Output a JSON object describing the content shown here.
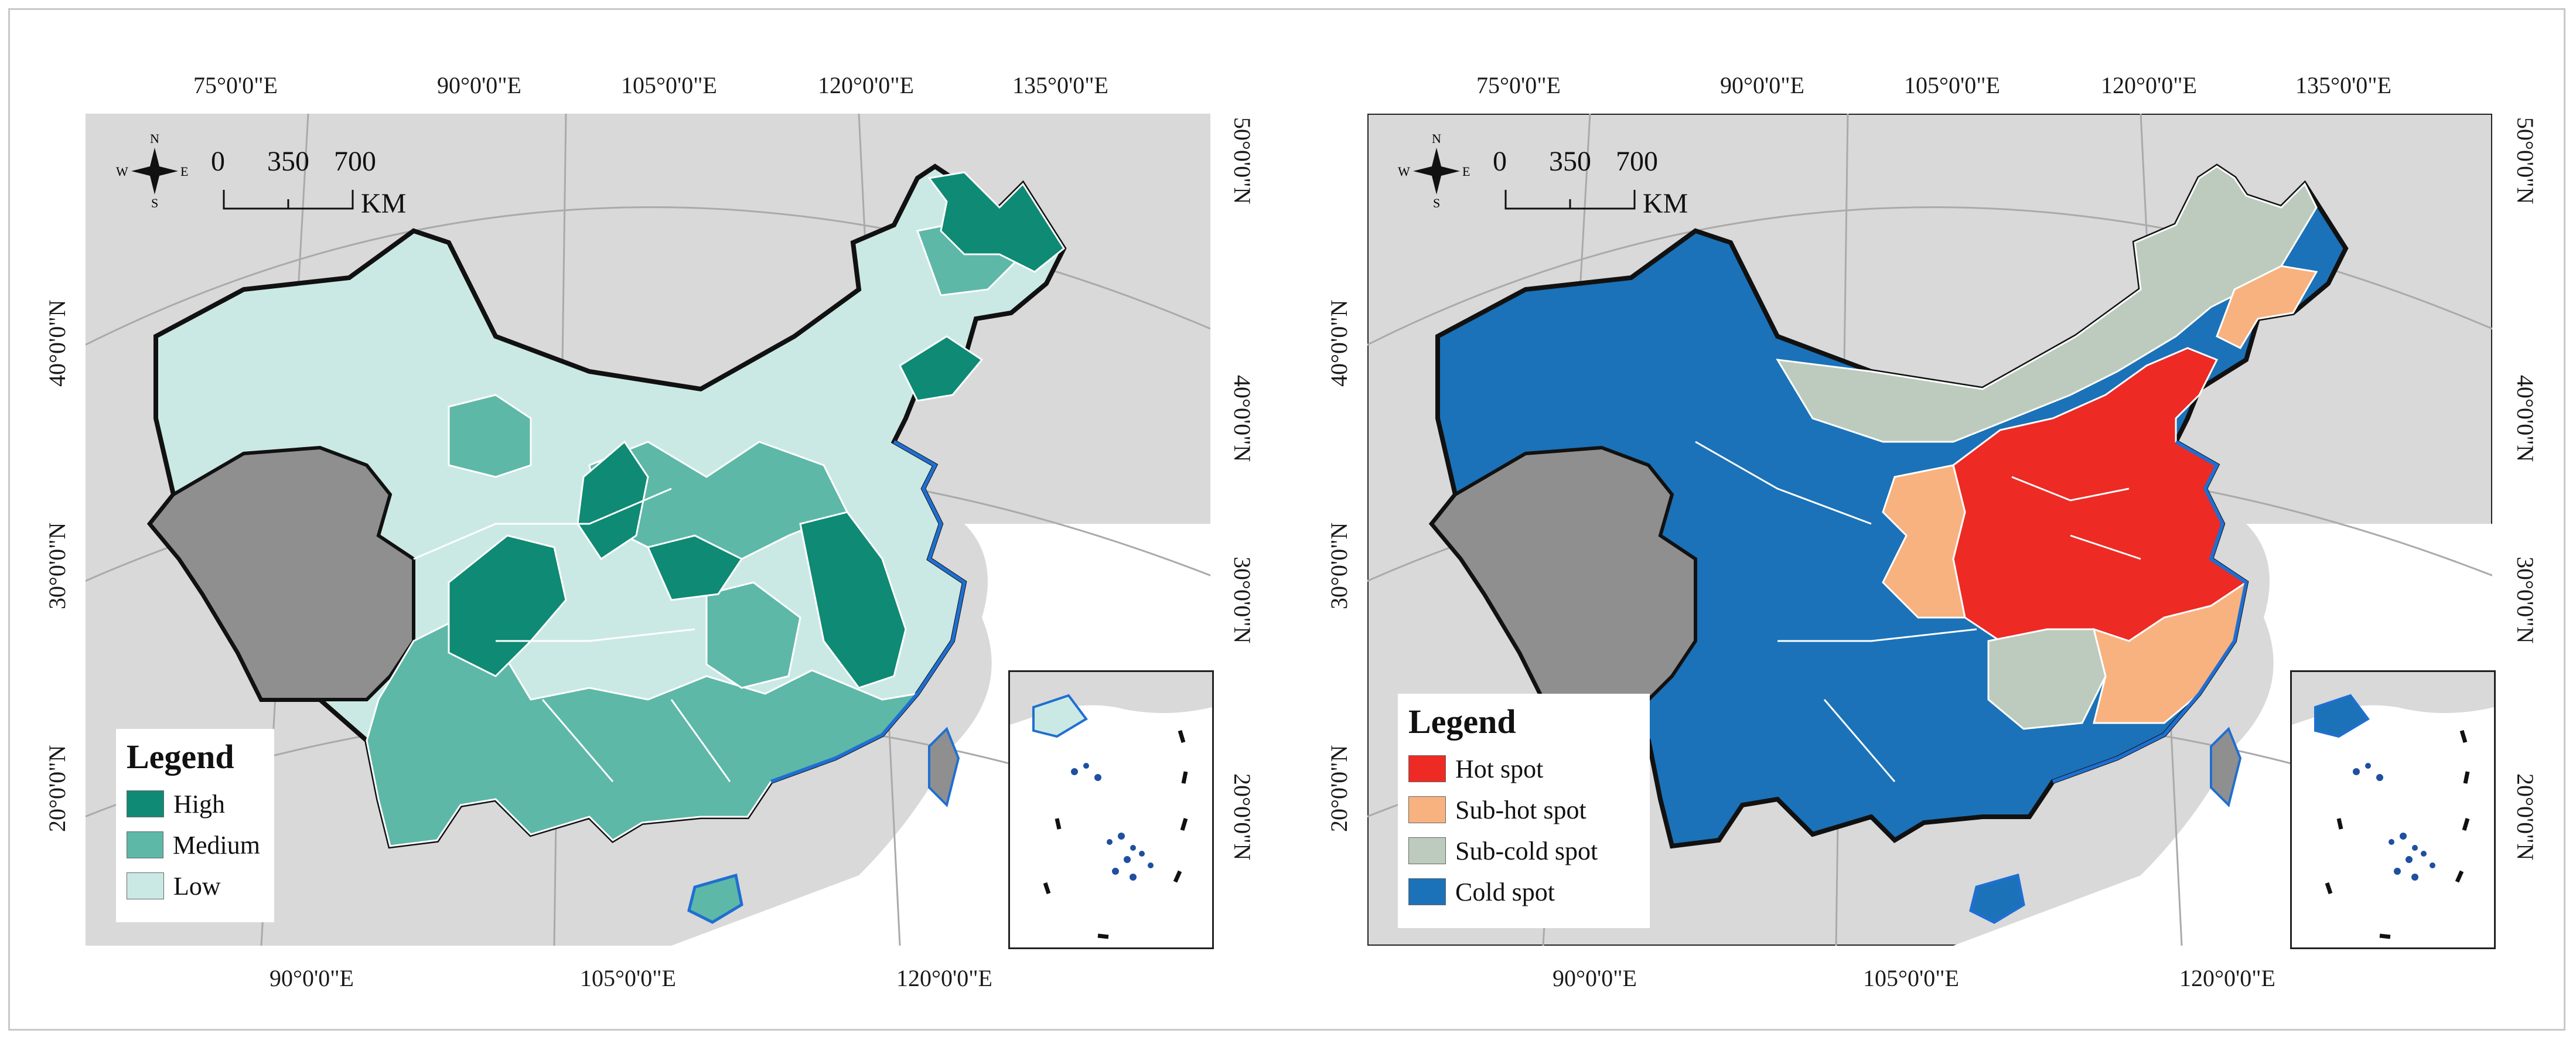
{
  "panels": [
    {
      "id": "left",
      "top_ticks": [
        "75°0'0\"E",
        "90°0'0\"E",
        "105°0'0\"E",
        "120°0'0\"E",
        "135°0'0\"E"
      ],
      "bottom_ticks": [
        "90°0'0\"E",
        "105°0'0\"E",
        "120°0'0\"E"
      ],
      "left_ticks": [
        "40°0'0\"N",
        "30°0'0\"N",
        "20°0'0\"N"
      ],
      "right_ticks": [
        "50°0'0\"N",
        "40°0'0\"N",
        "30°0'0\"N",
        "20°0'0\"N"
      ],
      "compass": {
        "n": "N",
        "s": "S",
        "e": "E",
        "w": "W"
      },
      "scale": {
        "labels": [
          "0",
          "350",
          "700"
        ],
        "unit": "KM"
      },
      "legend": {
        "title": "Legend",
        "items": [
          {
            "label": "High",
            "color": "#0f8a74"
          },
          {
            "label": "Medium",
            "color": "#5db8a8"
          },
          {
            "label": "Low",
            "color": "#cbe9e4"
          }
        ]
      },
      "nodata_color": "#8f8f8f"
    },
    {
      "id": "right",
      "top_ticks": [
        "75°0'0\"E",
        "90°0'0\"E",
        "105°0'0\"E",
        "120°0'0\"E",
        "135°0'0\"E"
      ],
      "bottom_ticks": [
        "90°0'0\"E",
        "105°0'0\"E",
        "120°0'0\"E"
      ],
      "left_ticks": [
        "40°0'0\"N",
        "30°0'0\"N",
        "20°0'0\"N"
      ],
      "right_ticks": [
        "50°0'0\"N",
        "40°0'0\"N",
        "30°0'0\"N",
        "20°0'0\"N"
      ],
      "compass": {
        "n": "N",
        "s": "S",
        "e": "E",
        "w": "W"
      },
      "scale": {
        "labels": [
          "0",
          "350",
          "700"
        ],
        "unit": "KM"
      },
      "legend": {
        "title": "Legend",
        "items": [
          {
            "label": "Hot spot",
            "color": "#ee2a24"
          },
          {
            "label": "Sub-hot spot",
            "color": "#f8b27f"
          },
          {
            "label": "Sub-cold spot",
            "color": "#bccbbd"
          },
          {
            "label": "Cold spot",
            "color": "#1b72b8"
          }
        ]
      },
      "nodata_color": "#8f8f8f"
    }
  ],
  "colors": {
    "background_land": "#d9d9d9",
    "sea": "#ffffff",
    "coast": "#1f6fd1",
    "border": "#111111"
  }
}
